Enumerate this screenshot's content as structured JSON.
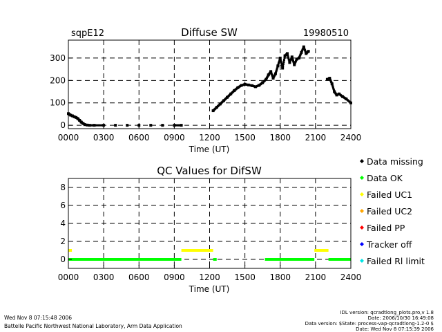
{
  "header": {
    "site": "sqpE12",
    "title": "Diffuse SW",
    "date": "19980510"
  },
  "chart_data": [
    {
      "type": "scatter",
      "title": "Diffuse SW",
      "xlabel": "Time (UT)",
      "ylabel": "",
      "xlim": [
        0,
        24
      ],
      "ylim": [
        -15,
        380
      ],
      "x_ticks": [
        0,
        3,
        6,
        9,
        12,
        15,
        18,
        21,
        24
      ],
      "x_tick_labels": [
        "0000",
        "0300",
        "0600",
        "0900",
        "1200",
        "1500",
        "1800",
        "2100",
        "2400"
      ],
      "y_ticks": [
        0,
        100,
        200,
        300
      ],
      "y_tick_labels": [
        "0",
        "100",
        "200",
        "300"
      ],
      "grid": "dashed",
      "series": [
        {
          "color": "#000000",
          "points": [
            [
              0.0,
              52
            ],
            [
              0.1,
              48
            ],
            [
              0.2,
              45
            ],
            [
              0.35,
              42
            ],
            [
              0.5,
              38
            ],
            [
              0.65,
              35
            ],
            [
              0.8,
              30
            ],
            [
              0.95,
              22
            ],
            [
              1.1,
              14
            ],
            [
              1.25,
              8
            ],
            [
              1.4,
              3
            ],
            [
              1.6,
              1
            ],
            [
              1.8,
              0
            ],
            [
              2.2,
              0
            ],
            [
              3.0,
              0
            ],
            [
              4.0,
              0
            ],
            [
              5.0,
              0
            ],
            [
              6.0,
              0
            ],
            [
              7.0,
              0
            ],
            [
              8.0,
              0
            ],
            [
              9.0,
              0
            ],
            [
              9.6,
              0
            ],
            [
              12.3,
              65
            ],
            [
              12.6,
              80
            ],
            [
              12.9,
              95
            ],
            [
              13.2,
              110
            ],
            [
              13.5,
              125
            ],
            [
              13.8,
              140
            ],
            [
              14.1,
              155
            ],
            [
              14.4,
              168
            ],
            [
              14.7,
              178
            ],
            [
              15.0,
              183
            ],
            [
              15.3,
              180
            ],
            [
              15.6,
              177
            ],
            [
              15.9,
              172
            ],
            [
              16.2,
              178
            ],
            [
              16.5,
              190
            ],
            [
              16.8,
              205
            ],
            [
              17.0,
              225
            ],
            [
              17.2,
              240
            ],
            [
              17.4,
              210
            ],
            [
              17.6,
              230
            ],
            [
              17.8,
              265
            ],
            [
              18.0,
              300
            ],
            [
              18.2,
              255
            ],
            [
              18.4,
              310
            ],
            [
              18.6,
              320
            ],
            [
              18.8,
              280
            ],
            [
              19.0,
              305
            ],
            [
              19.2,
              270
            ],
            [
              19.4,
              295
            ],
            [
              19.6,
              300
            ],
            [
              19.8,
              325
            ],
            [
              20.0,
              350
            ],
            [
              20.2,
              320
            ],
            [
              20.4,
              330
            ],
            [
              22.0,
              205
            ],
            [
              22.2,
              210
            ],
            [
              22.4,
              185
            ],
            [
              22.6,
              150
            ],
            [
              22.8,
              135
            ],
            [
              23.0,
              140
            ],
            [
              23.3,
              128
            ],
            [
              23.6,
              118
            ],
            [
              24.0,
              100
            ]
          ]
        }
      ]
    },
    {
      "type": "scatter",
      "title": "QC Values for DifSW",
      "xlabel": "Time (UT)",
      "ylabel": "",
      "xlim": [
        0,
        24
      ],
      "ylim": [
        -1,
        9
      ],
      "x_ticks": [
        0,
        3,
        6,
        9,
        12,
        15,
        18,
        21,
        24
      ],
      "x_tick_labels": [
        "0000",
        "0300",
        "0600",
        "0900",
        "1200",
        "1500",
        "1800",
        "2100",
        "2400"
      ],
      "y_ticks": [
        0,
        2,
        4,
        6,
        8
      ],
      "y_tick_labels": [
        "0",
        "2",
        "4",
        "6",
        "8"
      ],
      "grid": "dashed",
      "qc_segments": [
        {
          "category": "Data OK",
          "y": 0,
          "x0": 0.0,
          "x1": 9.6
        },
        {
          "category": "Data OK",
          "y": 0,
          "x0": 12.3,
          "x1": 12.6
        },
        {
          "category": "Data OK",
          "y": 0,
          "x0": 16.7,
          "x1": 20.9
        },
        {
          "category": "Data OK",
          "y": 0,
          "x0": 22.1,
          "x1": 24.0
        },
        {
          "category": "Failed UC1",
          "y": 1,
          "x0": 0.0,
          "x1": 0.3
        },
        {
          "category": "Failed UC1",
          "y": 1,
          "x0": 9.6,
          "x1": 12.3
        },
        {
          "category": "Failed UC1",
          "y": 1,
          "x0": 20.9,
          "x1": 22.1
        }
      ]
    }
  ],
  "legend": {
    "placement": "right",
    "items": [
      {
        "label": "Data missing",
        "color": "#000000"
      },
      {
        "label": "Data OK",
        "color": "#00ff00"
      },
      {
        "label": "Failed UC1",
        "color": "#ffff00"
      },
      {
        "label": "Failed UC2",
        "color": "#ffa500"
      },
      {
        "label": "Failed PP",
        "color": "#ff0000"
      },
      {
        "label": "Tracker off",
        "color": "#0000ff"
      },
      {
        "label": "Failed Rl limit",
        "color": "#00e5e5"
      }
    ]
  },
  "footer": {
    "left_line1": "Wed Nov  8 07:15:48 2006",
    "left_line2": "Battelle Pacific Northwest National Laboratory, Arm Data Application",
    "right_line1": "IDL version: qcradtlong_plots.pro,v 1.8",
    "right_line2": "Date: 2006/10/30 16:49:08",
    "right_line3": "Data version: $State: process-vap-qcradtlong-1.2-0 $",
    "right_line4": "Date: Wed Nov  8 07:15:39 2006"
  }
}
